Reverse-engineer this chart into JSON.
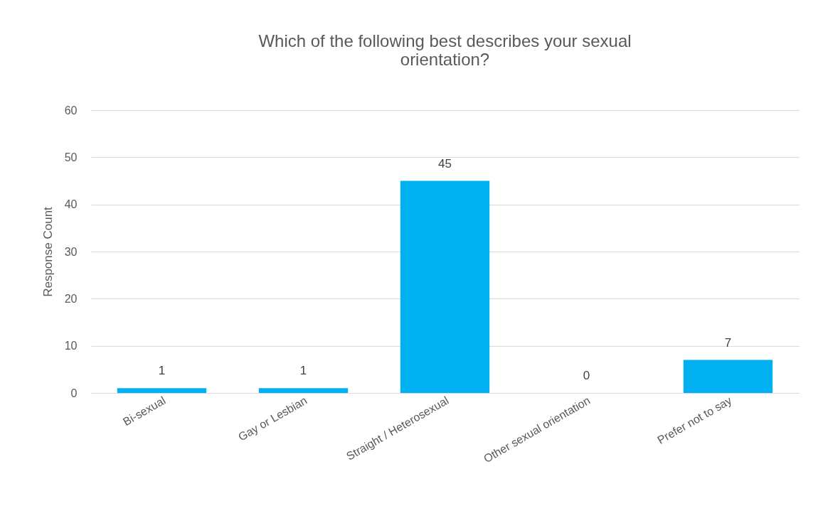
{
  "chart_data": {
    "type": "bar",
    "title": "Which of the following best describes your sexual orientation?",
    "ylabel": "Response Count",
    "categories": [
      "Bi-sexual",
      "Gay or Lesbian",
      "Straight / Heterosexual",
      "Other sexual orientation",
      "Prefer not to say"
    ],
    "values": [
      1,
      1,
      45,
      0,
      7
    ],
    "color": "#00b0f0",
    "ylim": [
      0,
      60
    ],
    "yticks": [
      0,
      10,
      20,
      30,
      40,
      50,
      60
    ],
    "grid": "y",
    "data_labels": true
  }
}
